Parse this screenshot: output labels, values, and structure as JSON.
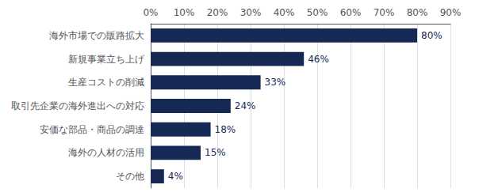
{
  "chart_data": {
    "type": "bar",
    "orientation": "horizontal",
    "categories": [
      "海外市場での販路拡大",
      "新規事業立ち上げ",
      "生産コストの削減",
      "取引先企業の海外進出への対応",
      "安価な部品・商品の調達",
      "海外の人材の活用",
      "その他"
    ],
    "values": [
      80,
      46,
      33,
      24,
      18,
      15,
      4
    ],
    "value_labels": [
      "80%",
      "46%",
      "33%",
      "24%",
      "18%",
      "15%",
      "4%"
    ],
    "data_labels": true,
    "color": "#162955",
    "xlim": [
      0,
      90
    ],
    "xticks": [
      {
        "value": 0,
        "label": "0%"
      },
      {
        "value": 10,
        "label": "10%"
      },
      {
        "value": 20,
        "label": "20%"
      },
      {
        "value": 30,
        "label": "30%"
      },
      {
        "value": 40,
        "label": "40%"
      },
      {
        "value": 50,
        "label": "50%"
      },
      {
        "value": 60,
        "label": "60%"
      },
      {
        "value": 70,
        "label": "70%"
      },
      {
        "value": 80,
        "label": "80%"
      },
      {
        "value": 90,
        "label": "90%"
      }
    ],
    "grid": true
  }
}
